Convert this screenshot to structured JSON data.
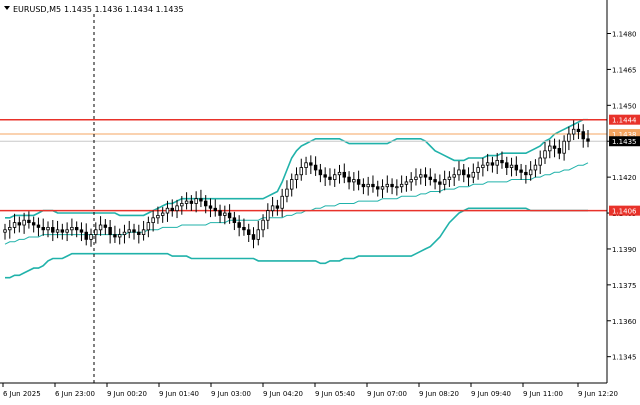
{
  "header": {
    "symbol": "EURUSD,M5",
    "ohlc": "1.1435 1.1436 1.1434 1.1435"
  },
  "colors": {
    "background": "#ffffff",
    "bull": "#000000",
    "bear": "#000000",
    "bollinger": "#20b2aa",
    "resistance_line": "#e8322a",
    "support_line": "#e8322a",
    "bid_line": "#c8c8c8",
    "ask_line": "#f4a460",
    "crosshair": "#000000"
  },
  "chart_data": {
    "type": "candlestick",
    "title": "",
    "xlabel": "",
    "ylabel": "",
    "ylim": [
      1.1334,
      1.1494
    ],
    "y_ticks": [
      1.1345,
      1.136,
      1.1375,
      1.139,
      1.1405,
      1.142,
      1.1435,
      1.145,
      1.1465,
      1.148
    ],
    "y_tick_labels": [
      "1.1345",
      "1.1360",
      "1.1375",
      "1.1390",
      "1.1405",
      "1.1420",
      "1.1435",
      "1.1450",
      "1.1465",
      "1.1480"
    ],
    "x_tick_labels": [
      "6 Jun 2025",
      "6 Jun 23:00",
      "9 Jun 00:20",
      "9 Jun 01:40",
      "9 Jun 03:00",
      "9 Jun 04:20",
      "9 Jun 05:40",
      "9 Jun 07:00",
      "9 Jun 08:20",
      "9 Jun 09:40",
      "9 Jun 11:00",
      "9 Jun 12:20"
    ],
    "grid": false,
    "horizontal_levels": [
      {
        "price": 1.1444,
        "label": "1.1444",
        "kind": "resistance"
      },
      {
        "price": 1.1438,
        "label": "1.1438",
        "kind": "ask"
      },
      {
        "price": 1.1435,
        "label": "1.1435",
        "kind": "bid"
      },
      {
        "price": 1.1406,
        "label": "1.1406",
        "kind": "support"
      }
    ],
    "close": [
      1.1398,
      1.1399,
      1.1401,
      1.14,
      1.1402,
      1.1401,
      1.14,
      1.1399,
      1.1398,
      1.1399,
      1.1397,
      1.1398,
      1.1397,
      1.1398,
      1.1399,
      1.1398,
      1.1397,
      1.1394,
      1.1396,
      1.1398,
      1.14,
      1.1399,
      1.1396,
      1.1395,
      1.1396,
      1.1397,
      1.1398,
      1.1397,
      1.1396,
      1.1398,
      1.1401,
      1.1403,
      1.1404,
      1.1405,
      1.1407,
      1.1406,
      1.1408,
      1.1409,
      1.141,
      1.1409,
      1.1411,
      1.141,
      1.1408,
      1.1407,
      1.1406,
      1.1404,
      1.1405,
      1.1403,
      1.1401,
      1.1399,
      1.1398,
      1.1396,
      1.1394,
      1.1398,
      1.1402,
      1.1406,
      1.1408,
      1.1407,
      1.1412,
      1.1415,
      1.1419,
      1.1421,
      1.1424,
      1.1426,
      1.1425,
      1.1423,
      1.1421,
      1.142,
      1.1419,
      1.1421,
      1.1422,
      1.142,
      1.1418,
      1.1419,
      1.1417,
      1.1416,
      1.1417,
      1.1416,
      1.1415,
      1.1416,
      1.1417,
      1.1416,
      1.1416,
      1.1417,
      1.1418,
      1.1419,
      1.142,
      1.1421,
      1.142,
      1.1419,
      1.1418,
      1.1417,
      1.1419,
      1.142,
      1.1421,
      1.1423,
      1.1421,
      1.142,
      1.1422,
      1.1424,
      1.1425,
      1.1426,
      1.1425,
      1.1427,
      1.1426,
      1.1424,
      1.1425,
      1.1423,
      1.1422,
      1.1421,
      1.1423,
      1.1425,
      1.1428,
      1.1431,
      1.1433,
      1.1432,
      1.143,
      1.1435,
      1.1438,
      1.144,
      1.1439,
      1.1436,
      1.1435
    ],
    "bollinger_upper": [
      1.1403,
      1.1403,
      1.1404,
      1.1404,
      1.1404,
      1.1404,
      1.1404,
      1.1405,
      1.1406,
      1.1406,
      1.1406,
      1.1405,
      1.1405,
      1.1405,
      1.1405,
      1.1405,
      1.1405,
      1.1405,
      1.1405,
      1.1405,
      1.1405,
      1.1405,
      1.1405,
      1.1405,
      1.1404,
      1.1404,
      1.1404,
      1.1404,
      1.1404,
      1.1404,
      1.1405,
      1.1406,
      1.1407,
      1.1408,
      1.1409,
      1.1409,
      1.141,
      1.1411,
      1.1411,
      1.1411,
      1.1411,
      1.1411,
      1.1411,
      1.1411,
      1.1411,
      1.1411,
      1.1411,
      1.1411,
      1.1411,
      1.1411,
      1.1411,
      1.1411,
      1.1411,
      1.1411,
      1.1411,
      1.1412,
      1.1413,
      1.1414,
      1.1418,
      1.1423,
      1.1428,
      1.1431,
      1.1433,
      1.1434,
      1.1435,
      1.1436,
      1.1436,
      1.1436,
      1.1436,
      1.1436,
      1.1436,
      1.1435,
      1.1434,
      1.1434,
      1.1434,
      1.1434,
      1.1434,
      1.1434,
      1.1434,
      1.1434,
      1.1434,
      1.1435,
      1.1436,
      1.1436,
      1.1436,
      1.1436,
      1.1436,
      1.1436,
      1.1435,
      1.1433,
      1.1431,
      1.143,
      1.1429,
      1.1428,
      1.1427,
      1.1427,
      1.1427,
      1.1428,
      1.1428,
      1.1428,
      1.1428,
      1.1429,
      1.1429,
      1.1429,
      1.143,
      1.143,
      1.143,
      1.143,
      1.143,
      1.143,
      1.1431,
      1.1432,
      1.1433,
      1.1435,
      1.1436,
      1.1438,
      1.1439,
      1.144,
      1.1441,
      1.1442,
      1.1443,
      1.1444,
      1.1444
    ],
    "bollinger_middle": [
      1.1392,
      1.1393,
      1.1393,
      1.1394,
      1.1394,
      1.1395,
      1.1395,
      1.1395,
      1.1396,
      1.1396,
      1.1396,
      1.1396,
      1.1396,
      1.1396,
      1.1396,
      1.1396,
      1.1396,
      1.1396,
      1.1396,
      1.1396,
      1.1396,
      1.1396,
      1.1396,
      1.1396,
      1.1396,
      1.1396,
      1.1397,
      1.1397,
      1.1397,
      1.1397,
      1.1398,
      1.1398,
      1.1398,
      1.1399,
      1.1399,
      1.1399,
      1.1399,
      1.14,
      1.14,
      1.14,
      1.14,
      1.14,
      1.14,
      1.1401,
      1.1401,
      1.1401,
      1.1401,
      1.1402,
      1.1402,
      1.1402,
      1.1402,
      1.1402,
      1.1402,
      1.1402,
      1.1403,
      1.1403,
      1.1403,
      1.1403,
      1.1403,
      1.1404,
      1.1404,
      1.1405,
      1.1405,
      1.1406,
      1.1406,
      1.1407,
      1.1407,
      1.1408,
      1.1408,
      1.1408,
      1.1409,
      1.1409,
      1.1409,
      1.1409,
      1.141,
      1.141,
      1.141,
      1.141,
      1.141,
      1.1411,
      1.1411,
      1.1411,
      1.1411,
      1.1412,
      1.1412,
      1.1412,
      1.1412,
      1.1413,
      1.1413,
      1.1414,
      1.1414,
      1.1414,
      1.1415,
      1.1415,
      1.1415,
      1.1416,
      1.1416,
      1.1416,
      1.1417,
      1.1417,
      1.1417,
      1.1418,
      1.1418,
      1.1418,
      1.1418,
      1.1418,
      1.1419,
      1.1419,
      1.1419,
      1.1419,
      1.1419,
      1.142,
      1.142,
      1.1421,
      1.1421,
      1.1422,
      1.1422,
      1.1423,
      1.1423,
      1.1424,
      1.1425,
      1.1425,
      1.1426
    ],
    "bollinger_lower": [
      1.1378,
      1.1378,
      1.1379,
      1.1379,
      1.138,
      1.1381,
      1.1382,
      1.1382,
      1.1383,
      1.1385,
      1.1386,
      1.1386,
      1.1386,
      1.1387,
      1.1388,
      1.1388,
      1.1388,
      1.1388,
      1.1388,
      1.1388,
      1.1388,
      1.1388,
      1.1388,
      1.1388,
      1.1388,
      1.1388,
      1.1388,
      1.1388,
      1.1388,
      1.1388,
      1.1388,
      1.1388,
      1.1388,
      1.1388,
      1.1388,
      1.1387,
      1.1387,
      1.1387,
      1.1387,
      1.1386,
      1.1386,
      1.1386,
      1.1386,
      1.1386,
      1.1386,
      1.1386,
      1.1386,
      1.1386,
      1.1386,
      1.1386,
      1.1386,
      1.1386,
      1.1386,
      1.1385,
      1.1385,
      1.1385,
      1.1385,
      1.1385,
      1.1385,
      1.1385,
      1.1385,
      1.1385,
      1.1385,
      1.1385,
      1.1385,
      1.1385,
      1.1384,
      1.1384,
      1.1385,
      1.1385,
      1.1385,
      1.1386,
      1.1386,
      1.1386,
      1.1387,
      1.1387,
      1.1387,
      1.1387,
      1.1387,
      1.1387,
      1.1387,
      1.1387,
      1.1387,
      1.1387,
      1.1387,
      1.1387,
      1.1388,
      1.1389,
      1.139,
      1.1391,
      1.1393,
      1.1395,
      1.1398,
      1.1401,
      1.1403,
      1.1405,
      1.1406,
      1.1407,
      1.1407,
      1.1407,
      1.1407,
      1.1407,
      1.1407,
      1.1407,
      1.1407,
      1.1407,
      1.1407,
      1.1407,
      1.1407,
      1.1407,
      1.1406,
      1.1406,
      1.1406,
      1.1406,
      1.1406,
      1.1406,
      1.1406,
      1.1406,
      1.1406,
      1.1406,
      1.1406,
      1.1406,
      1.1406
    ]
  }
}
